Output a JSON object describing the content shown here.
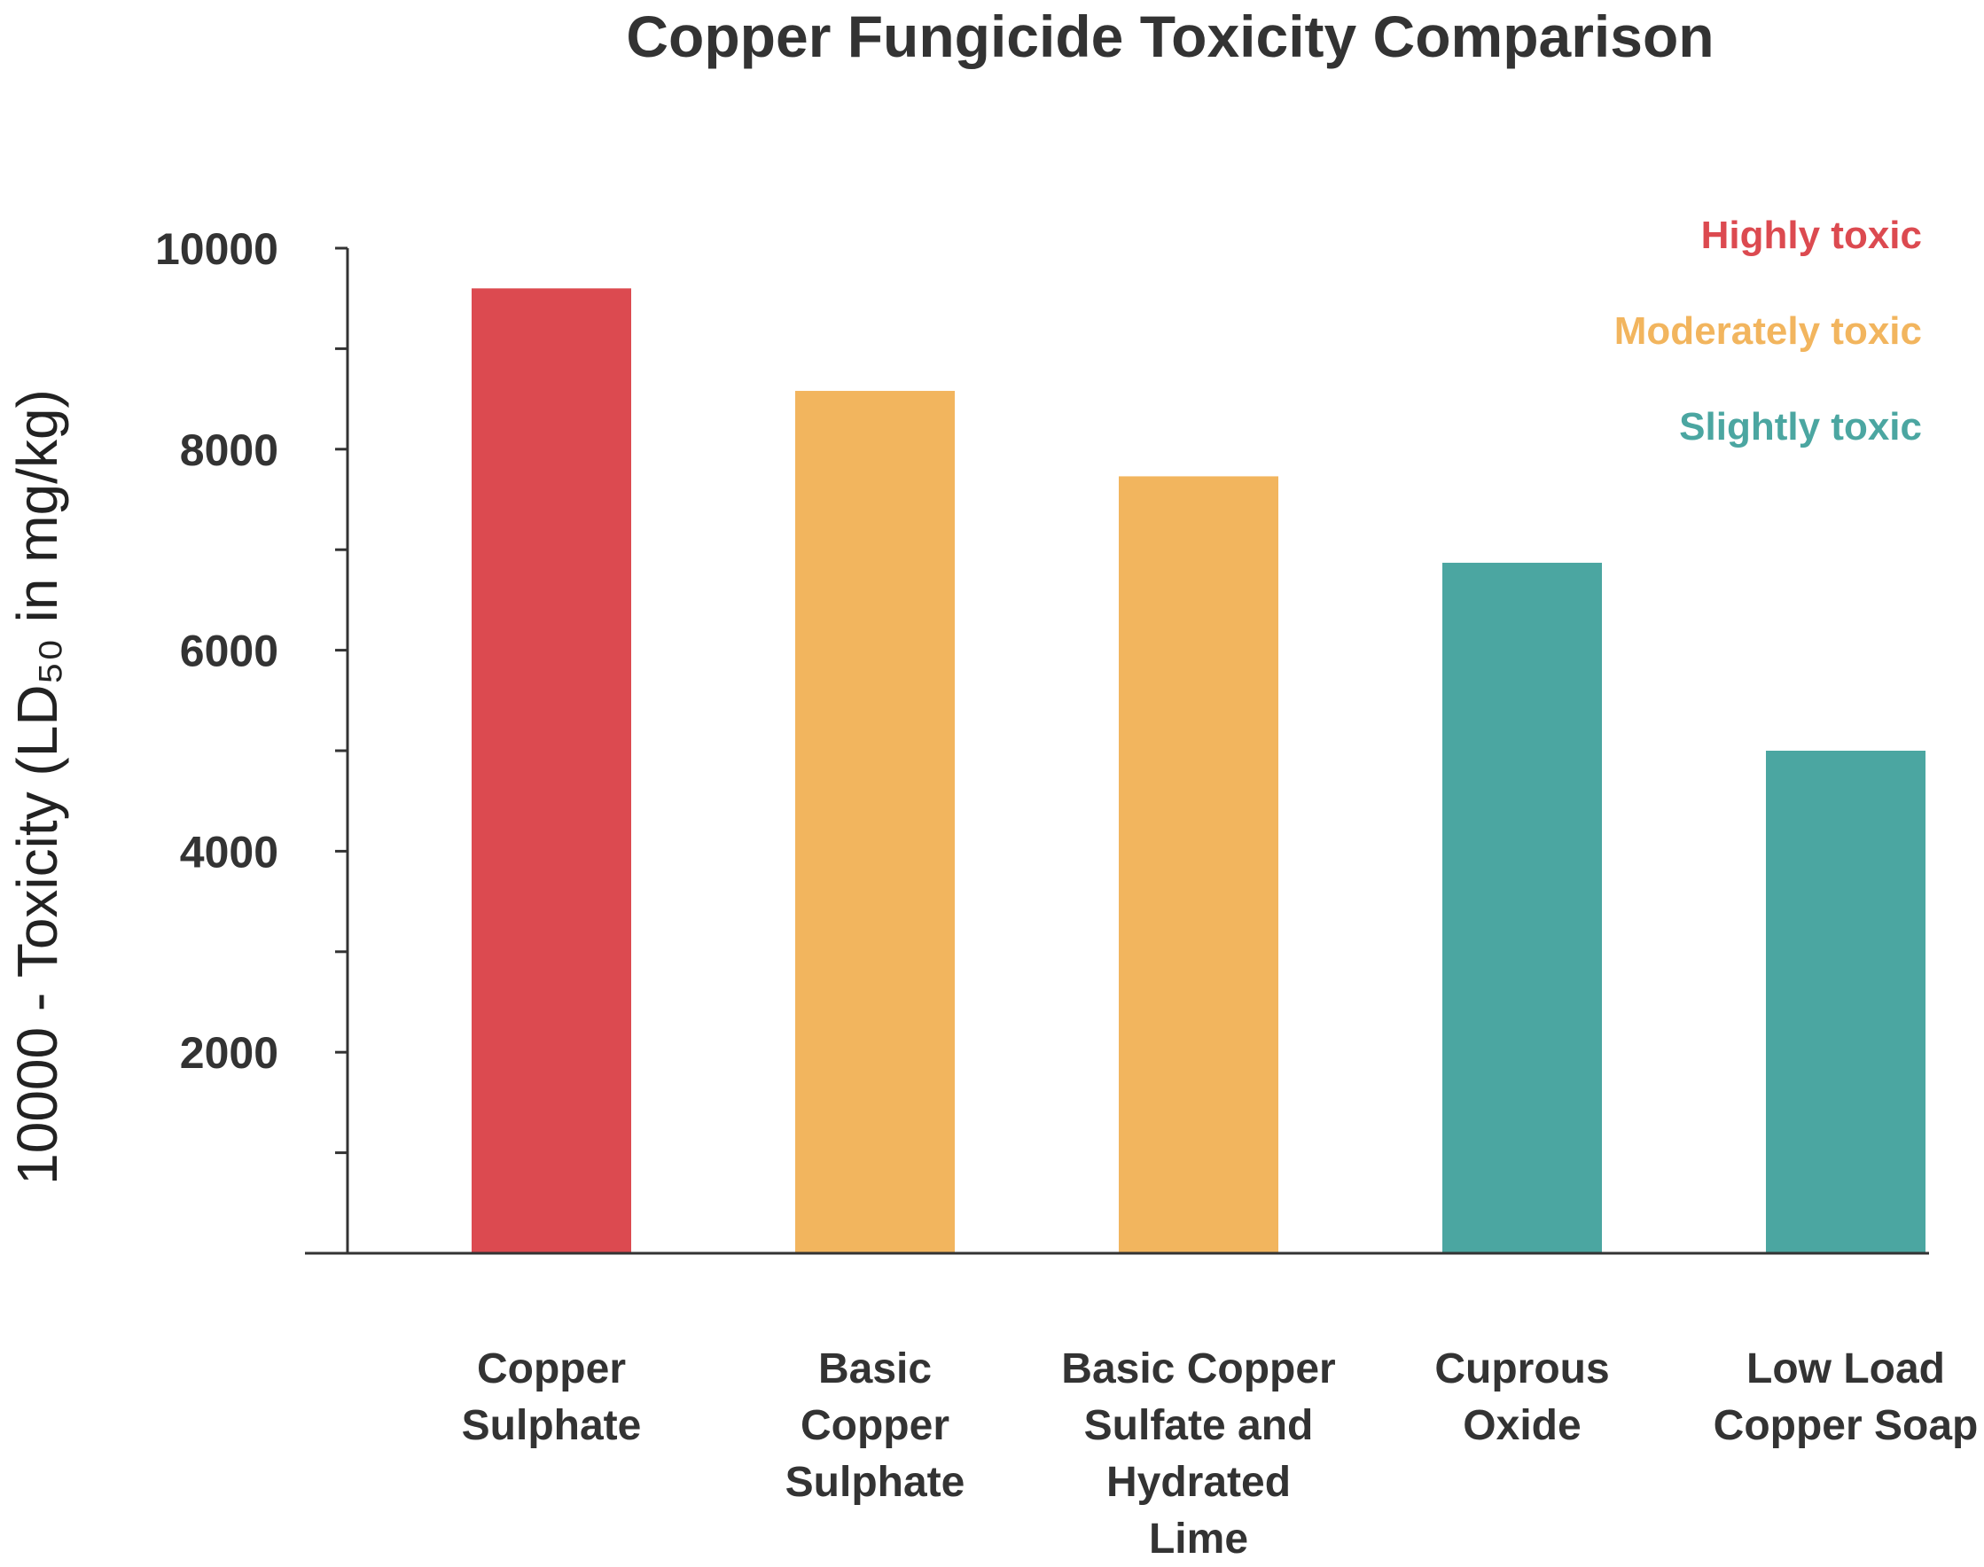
{
  "chart_data": {
    "type": "bar",
    "title": "Copper Fungicide Toxicity Comparison",
    "ylabel": "10000 - Toxicity (LD₅₀ in mg/kg)",
    "xlabel": "",
    "ylim": [
      0,
      10000
    ],
    "yticks": [
      2000,
      4000,
      6000,
      8000,
      10000
    ],
    "categories": [
      [
        "Copper",
        "Sulphate"
      ],
      [
        "Basic",
        "Copper",
        "Sulphate"
      ],
      [
        "Basic Copper",
        "Sulfate and",
        "Hydrated",
        "Lime"
      ],
      [
        "Cuprous",
        "Oxide"
      ],
      [
        "Low Load",
        "Copper Soap"
      ]
    ],
    "values": [
      9600,
      8580,
      7730,
      6870,
      5000
    ],
    "bar_colors": [
      "#dc4a50",
      "#f2b55e",
      "#f2b55e",
      "#4ba6a1",
      "#4ba6a1"
    ],
    "legend_position": "top-right",
    "legend": [
      {
        "label": "Highly toxic",
        "color": "#dc4a50"
      },
      {
        "label": "Moderately toxic",
        "color": "#f2b55e"
      },
      {
        "label": "Slightly toxic",
        "color": "#4ba6a1"
      }
    ],
    "grid": false
  }
}
